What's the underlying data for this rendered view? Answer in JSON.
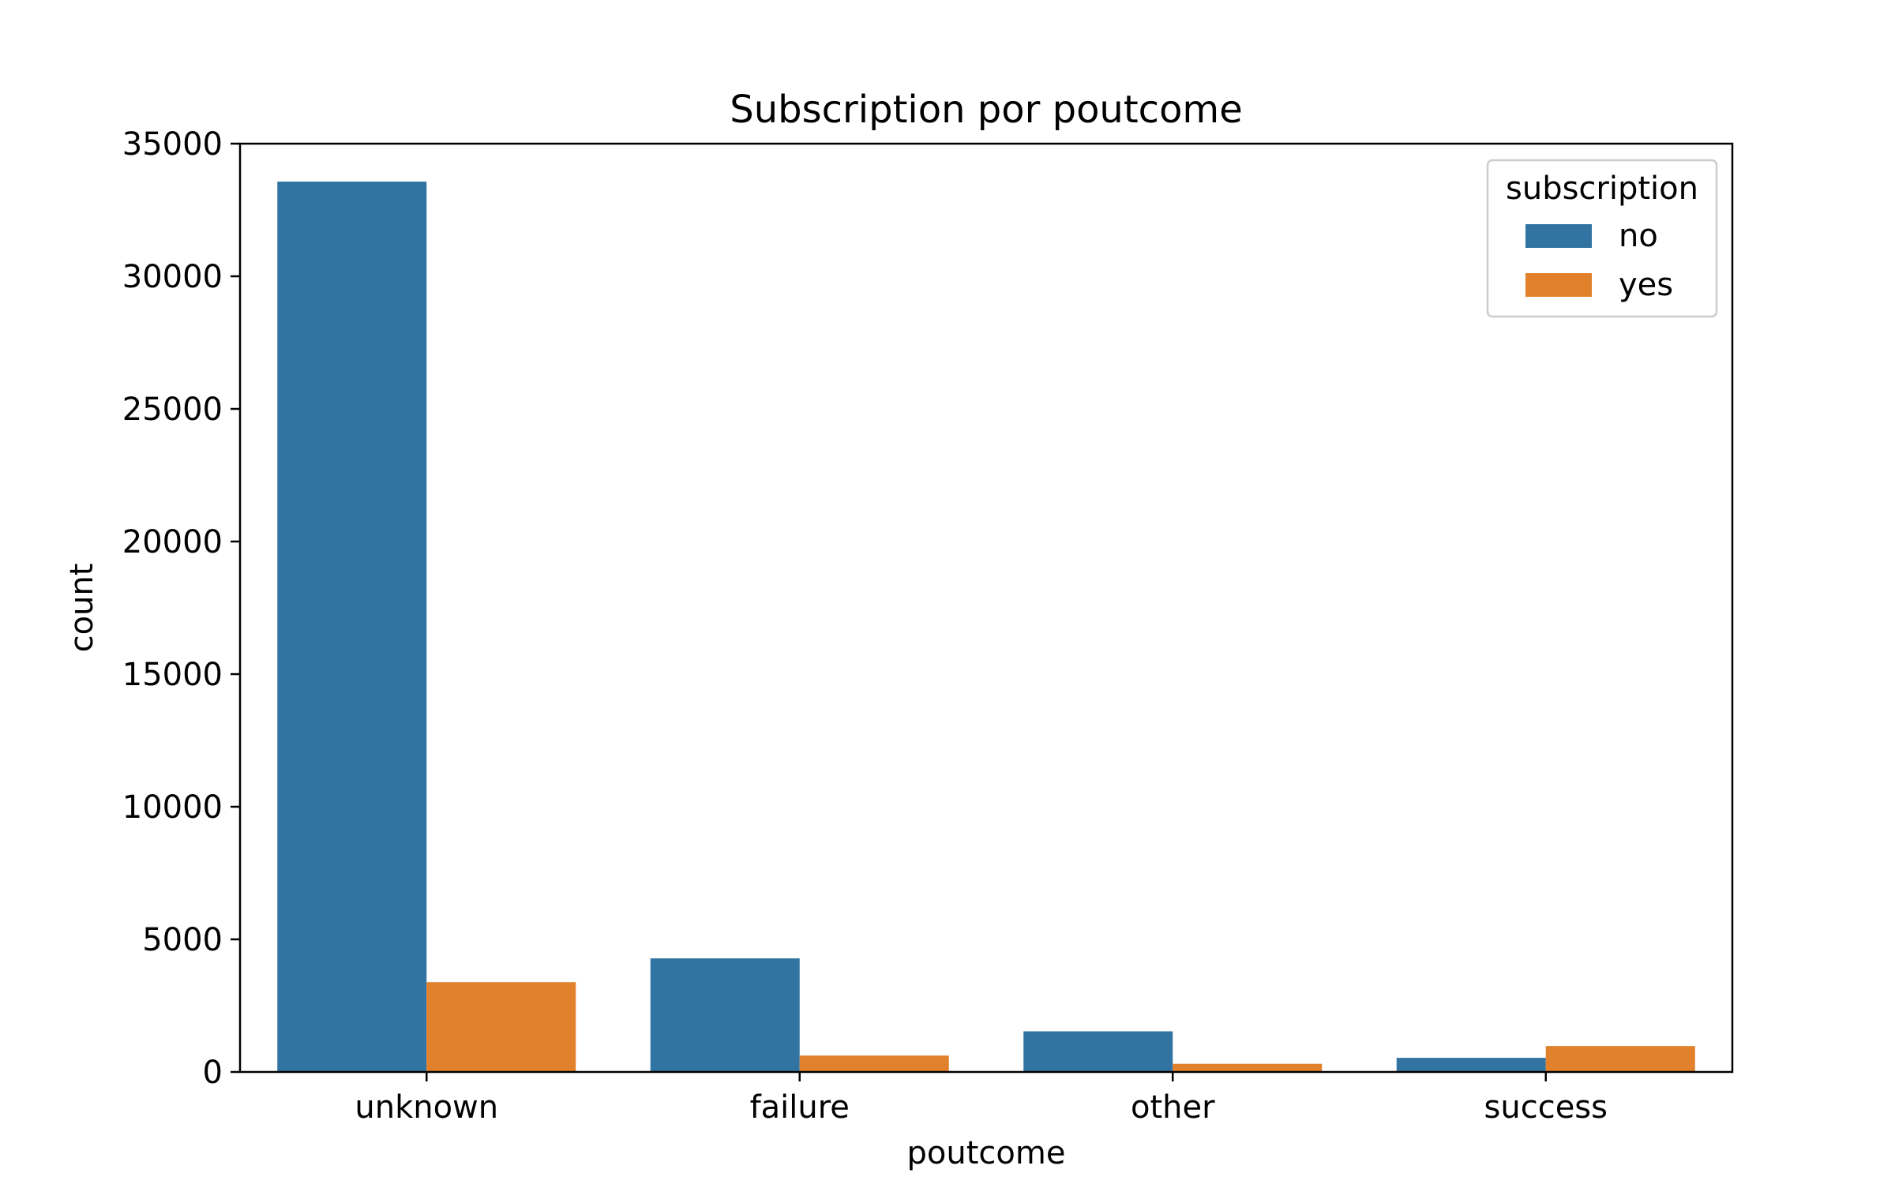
{
  "chart_data": {
    "type": "bar",
    "title": "Subscription por poutcome",
    "xlabel": "poutcome",
    "ylabel": "count",
    "categories": [
      "unknown",
      "failure",
      "other",
      "success"
    ],
    "series": [
      {
        "name": "no",
        "color": "#3274a1",
        "values": [
          33570,
          4283,
          1533,
          533
        ]
      },
      {
        "name": "yes",
        "color": "#e1812c",
        "values": [
          3386,
          618,
          307,
          978
        ]
      }
    ],
    "ylim": [
      0,
      35000
    ],
    "yticks": [
      0,
      5000,
      10000,
      15000,
      20000,
      25000,
      30000,
      35000
    ],
    "ytick_labels": [
      "0",
      "5000",
      "10000",
      "15000",
      "20000",
      "25000",
      "30000",
      "35000"
    ],
    "grid": false,
    "legend": {
      "title": "subscription",
      "placement": "top-right"
    }
  }
}
